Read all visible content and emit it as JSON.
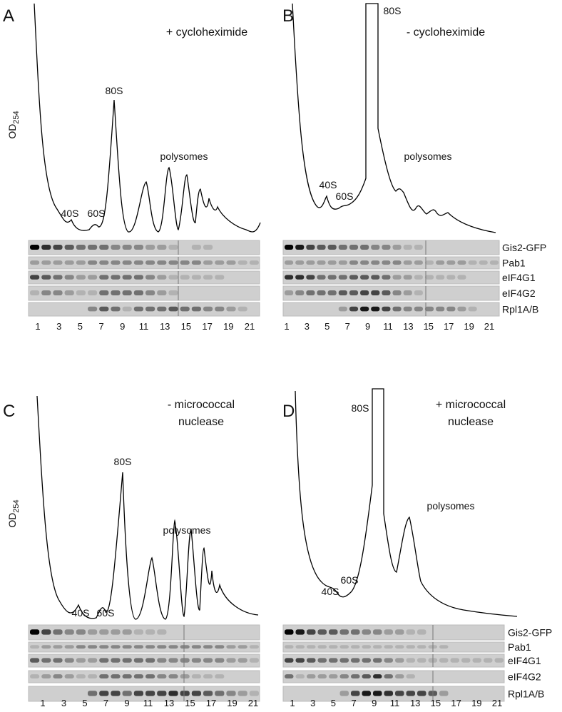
{
  "panels": [
    {
      "label": "A",
      "condition": [
        "+ cycloheximide"
      ],
      "y_label": "OD",
      "y_label_sub": "254",
      "peaks": [
        "40S",
        "60S",
        "80S",
        "polysomes"
      ],
      "blots": [],
      "fractions": [
        "1",
        "3",
        "5",
        "7",
        "9",
        "11",
        "13",
        "15",
        "17",
        "19",
        "21"
      ]
    },
    {
      "label": "B",
      "condition": [
        "- cycloheximide"
      ],
      "peaks": [
        "40S",
        "60S",
        "80S",
        "polysomes"
      ],
      "blots": [
        "Gis2-GFP",
        "Pab1",
        "eIF4G1",
        "eIF4G2",
        "Rpl1A/B"
      ],
      "fractions": [
        "1",
        "3",
        "5",
        "7",
        "9",
        "11",
        "13",
        "15",
        "17",
        "19",
        "21"
      ]
    },
    {
      "label": "C",
      "condition": [
        "- micrococcal",
        "nuclease"
      ],
      "y_label": "OD",
      "y_label_sub": "254",
      "peaks": [
        "40S",
        "60S",
        "80S",
        "polysomes"
      ],
      "blots": [],
      "fractions": [
        "1",
        "3",
        "5",
        "7",
        "9",
        "11",
        "13",
        "15",
        "17",
        "19",
        "21"
      ]
    },
    {
      "label": "D",
      "condition": [
        "+ micrococcal",
        "nuclease"
      ],
      "peaks": [
        "40S",
        "60S",
        "80S",
        "polysomes"
      ],
      "blots": [
        "Gis2-GFP",
        "Pab1",
        "eIF4G1",
        "eIF4G2",
        "Rpl1A/B"
      ],
      "fractions": [
        "1",
        "3",
        "5",
        "7",
        "9",
        "11",
        "13",
        "15",
        "17",
        "19",
        "21"
      ]
    }
  ]
}
